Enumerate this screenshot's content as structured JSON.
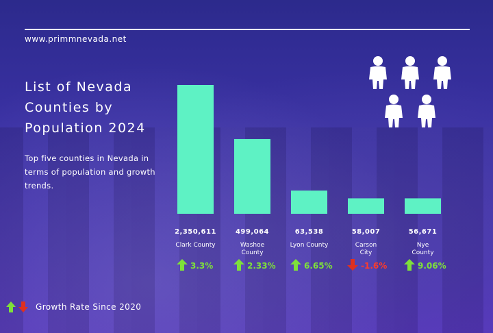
{
  "site": "www.primmnevada.net",
  "title": "List of Nevada\nCounties by\nPopulation 2024",
  "subtitle": "Top five counties in Nevada in terms of population and growth trends.",
  "legend_label": "Growth Rate Since 2020",
  "colors": {
    "bar": "#5ef2c4",
    "up": "#7ee03a",
    "down": "#e0301f",
    "growth_text": "#7ee03a",
    "decline_text": "#ff3b2a"
  },
  "icons": [
    "person-icon",
    "up-arrow-icon",
    "down-arrow-icon"
  ],
  "chart_data": {
    "type": "bar",
    "categories": [
      "Clark County",
      "Washoe County",
      "Lyon County",
      "Carson City",
      "Nye County"
    ],
    "category_lines": [
      [
        "Clark County"
      ],
      [
        "Washoe",
        "County"
      ],
      [
        "Lyon County"
      ],
      [
        "Carson",
        "City"
      ],
      [
        "Nye",
        "County"
      ]
    ],
    "values": [
      2350611,
      499064,
      63538,
      58007,
      56671
    ],
    "value_labels": [
      "2,350,611",
      "499,064",
      "63,538",
      "58,007",
      "56,671"
    ],
    "growth": [
      3.3,
      2.33,
      6.65,
      -1.6,
      9.06
    ],
    "growth_labels": [
      "3.3%",
      "2.33%",
      "6.65%",
      "-1.6%",
      "9.06%"
    ],
    "bar_scale": "non-linear",
    "bar_heights_relative": [
      1.0,
      0.58,
      0.18,
      0.12,
      0.12
    ],
    "grid": false
  }
}
